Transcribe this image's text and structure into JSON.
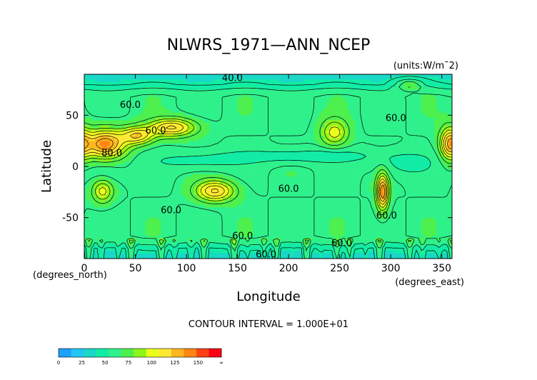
{
  "chart_data": {
    "type": "heatmap",
    "title": "NLWRS_1971—ANN_NCEP",
    "units_label": "(units:W/m¯2)",
    "xlabel": "Longitude",
    "ylabel": "Latitude",
    "x_unit_label": "(degrees_east)",
    "y_unit_label": "(degrees_north)",
    "contour_interval_label": "CONTOUR INTERVAL = 1.000E+01",
    "xlim": [
      0,
      360
    ],
    "ylim": [
      -90,
      90
    ],
    "x_ticks": [
      0,
      50,
      100,
      150,
      200,
      250,
      300,
      350
    ],
    "y_ticks": [
      -50,
      0,
      50
    ],
    "grid": false,
    "contour_labels": [
      {
        "text": "40.0",
        "lon": 145,
        "lat": 86
      },
      {
        "text": "60.0",
        "lon": 45,
        "lat": 60
      },
      {
        "text": "60.0",
        "lon": 70,
        "lat": 35
      },
      {
        "text": "80.0",
        "lon": 27,
        "lat": 13
      },
      {
        "text": "60.0",
        "lon": 305,
        "lat": 47
      },
      {
        "text": "60.0",
        "lon": 200,
        "lat": -22
      },
      {
        "text": "60.0",
        "lon": 85,
        "lat": -43
      },
      {
        "text": "60.0",
        "lon": 155,
        "lat": -68
      },
      {
        "text": "60.0",
        "lon": 252,
        "lat": -75
      },
      {
        "text": "60.0",
        "lon": 178,
        "lat": -86
      },
      {
        "text": "60.0",
        "lon": 296,
        "lat": -48
      }
    ],
    "field_features": [
      {
        "lon": 20,
        "lat": 22,
        "peak": 128,
        "slon": 14,
        "slat": 10
      },
      {
        "lon": 52,
        "lat": 30,
        "peak": 108,
        "slon": 11,
        "slat": 6
      },
      {
        "lon": 86,
        "lat": 38,
        "peak": 112,
        "slon": 16,
        "slat": 6
      },
      {
        "lon": 128,
        "lat": -24,
        "peak": 112,
        "slon": 13,
        "slat": 7
      },
      {
        "lon": 245,
        "lat": 33,
        "peak": 95,
        "slon": 9,
        "slat": 9
      },
      {
        "lon": 18,
        "lat": -24,
        "peak": 95,
        "slon": 7,
        "slat": 8
      },
      {
        "lon": 292,
        "lat": -25,
        "peak": 130,
        "slon": 4,
        "slat": 12
      },
      {
        "lon": 357,
        "lat": 22,
        "peak": 108,
        "slon": 6,
        "slat": 11
      },
      {
        "lon": 318,
        "lat": 80,
        "peak": 88,
        "slon": 10,
        "slat": 4
      }
    ],
    "field_lows": [
      {
        "lon": 215,
        "lat": 10,
        "depth": 18,
        "slon": 55,
        "slat": 5
      },
      {
        "lon": 110,
        "lat": 5,
        "depth": 14,
        "slon": 30,
        "slat": 6
      },
      {
        "lon": 315,
        "lat": 2,
        "depth": 14,
        "slon": 20,
        "slat": 8
      },
      {
        "lon": 20,
        "lat": -5,
        "depth": 10,
        "slon": 12,
        "slat": 10
      }
    ],
    "legend": {
      "tick_labels": [
        "0",
        "25",
        "50",
        "75",
        "100",
        "125",
        "150",
        "∞"
      ],
      "bounds": [
        0,
        12.5,
        25,
        37.5,
        50,
        62.5,
        75,
        87.5,
        100,
        112.5,
        125,
        137.5,
        150
      ],
      "colors": [
        "#1f9fff",
        "#21c6f4",
        "#1ad7c8",
        "#12eca5",
        "#2ff18b",
        "#4ef04e",
        "#8ff51b",
        "#ebff1c",
        "#ffe833",
        "#ffb61f",
        "#ff8614",
        "#ff4212",
        "#ff0017"
      ]
    }
  }
}
